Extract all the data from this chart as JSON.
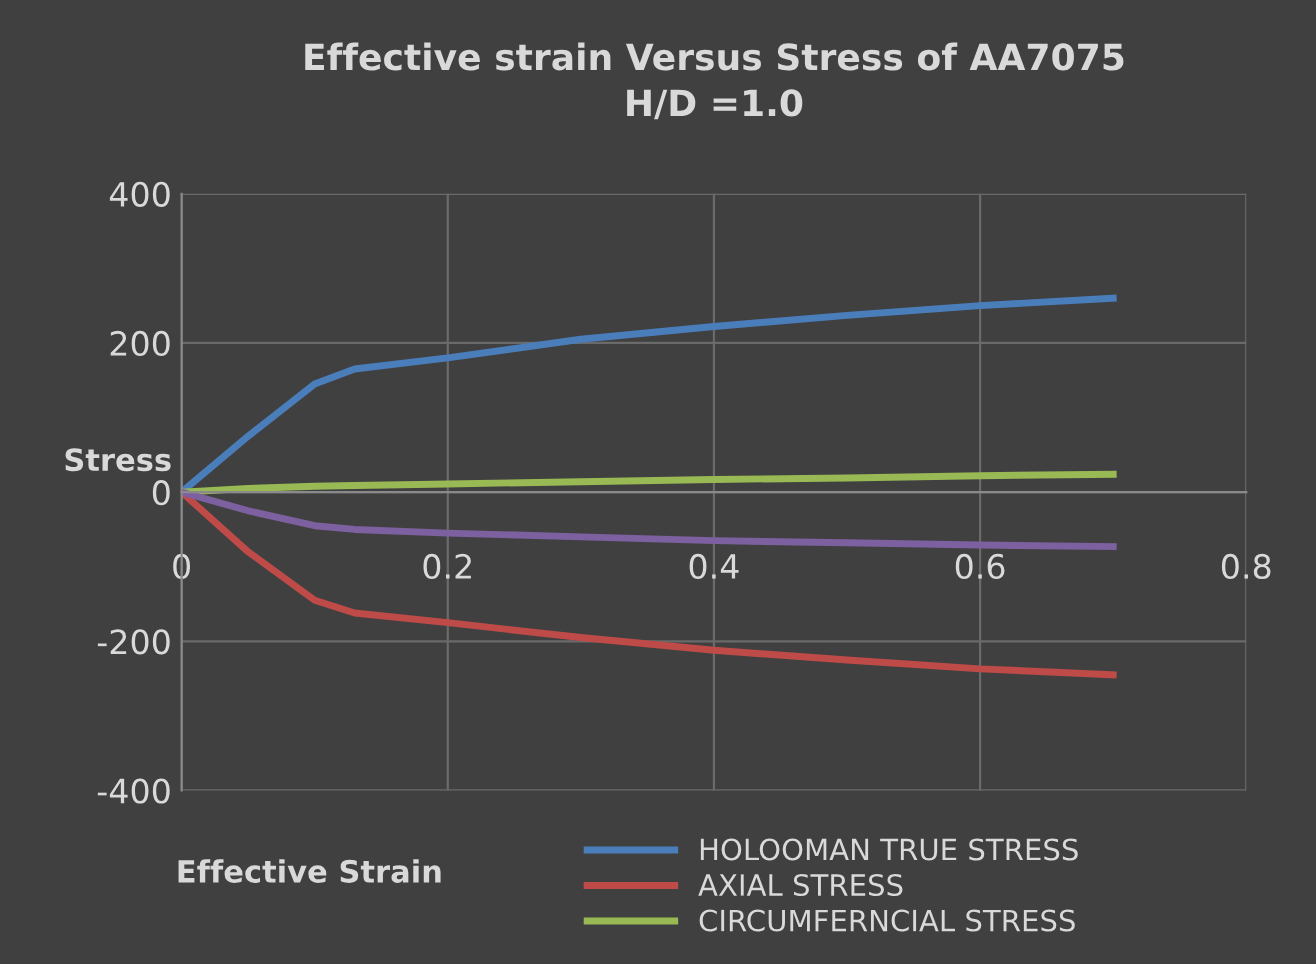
{
  "chart_data": {
    "type": "line",
    "title": "Effective strain Versus Stress of AA7075\nH/D =1.0",
    "xlabel": "Effective Strain",
    "ylabel": "Stress",
    "x": [
      0,
      0.05,
      0.1,
      0.13,
      0.2,
      0.3,
      0.4,
      0.5,
      0.6,
      0.7
    ],
    "series": [
      {
        "name": "HOLOOMAN TRUE STRESS",
        "color": "#4a7ebb",
        "values": [
          0,
          75,
          145,
          165,
          180,
          205,
          222,
          237,
          250,
          260
        ]
      },
      {
        "name": "AXIAL STRESS",
        "color": "#be4b48",
        "values": [
          0,
          -80,
          -145,
          -162,
          -175,
          -195,
          -212,
          -225,
          -237,
          -245
        ]
      },
      {
        "name": "CIRCUMFERNCIAL STRESS",
        "color": "#98b954",
        "values": [
          0,
          5,
          8,
          9,
          11,
          14,
          17,
          19,
          22,
          24
        ]
      },
      {
        "color": "#7d60a0",
        "values": [
          0,
          -25,
          -45,
          -50,
          -55,
          -60,
          -65,
          -68,
          -71,
          -73
        ]
      }
    ],
    "xlim": [
      0,
      0.8
    ],
    "xticks": [
      {
        "value": 0,
        "label": "0"
      },
      0.2,
      0.4,
      0.6,
      0.8
    ],
    "ylim": [
      -400,
      400
    ],
    "yticks": [
      -400,
      -200,
      0,
      200,
      400
    ],
    "grid": true,
    "legend": "bottom",
    "marker": "none",
    "line_style": "solid"
  }
}
